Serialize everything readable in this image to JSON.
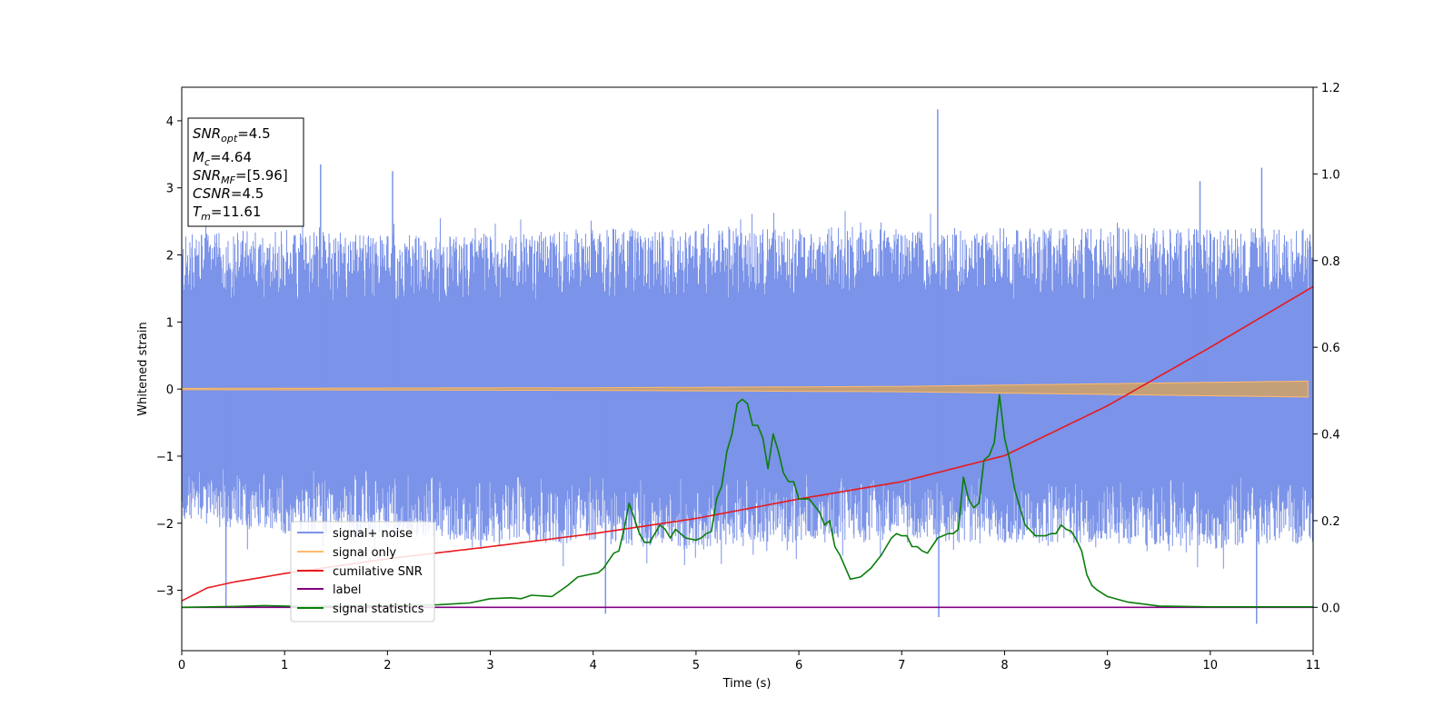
{
  "chart_data": {
    "type": "line",
    "title": "",
    "xlabel": "Time (s)",
    "ylabel": "Whitened strain",
    "xlim": [
      0,
      11
    ],
    "ylim": [
      -3.9,
      4.5
    ],
    "y2lim": [
      -0.1,
      1.2
    ],
    "grid": false,
    "legend_position": "lower-left",
    "x_ticks": [
      "0",
      "1",
      "2",
      "3",
      "4",
      "5",
      "6",
      "7",
      "8",
      "9",
      "10",
      "11"
    ],
    "y_ticks": [
      "−3",
      "−2",
      "−1",
      "0",
      "1",
      "2",
      "3",
      "4"
    ],
    "y2_ticks": [
      "0.0",
      "0.2",
      "0.4",
      "0.6",
      "0.8",
      "1.0",
      "1.2"
    ],
    "annotation_lines": [
      {
        "name": "SNR",
        "sub": "opt",
        "value": "=4.5"
      },
      {
        "name": "M",
        "sub": "c",
        "value": "=4.64"
      },
      {
        "name": "SNR",
        "sub": "MF",
        "value": "=[5.96]"
      },
      {
        "name": "CSNR",
        "sub": "",
        "value": "=4.5"
      },
      {
        "name": "T",
        "sub": "m",
        "value": "=11.61"
      }
    ],
    "series": [
      {
        "name": "signal+ noise",
        "axis": "left",
        "color": "#7b93e8",
        "style": "dense noise band, typical range about ±2.4 with spikes to 4.17 near t=7.35 and down to -3.5 near t=10.45",
        "envelope_upper": [
          [
            0,
            2.3
          ],
          [
            1,
            2.4
          ],
          [
            2,
            2.3
          ],
          [
            3,
            2.3
          ],
          [
            4,
            2.4
          ],
          [
            5,
            2.4
          ],
          [
            6,
            2.4
          ],
          [
            7,
            2.4
          ],
          [
            8,
            2.4
          ],
          [
            9,
            2.4
          ],
          [
            10,
            2.4
          ],
          [
            11,
            2.4
          ]
        ],
        "envelope_lower": [
          [
            0,
            -2.0
          ],
          [
            1,
            -2.2
          ],
          [
            2,
            -2.2
          ],
          [
            3,
            -2.3
          ],
          [
            4,
            -2.3
          ],
          [
            5,
            -2.4
          ],
          [
            6,
            -2.3
          ],
          [
            7,
            -2.3
          ],
          [
            8,
            -2.3
          ],
          [
            9,
            -2.3
          ],
          [
            10,
            -2.4
          ],
          [
            11,
            -2.3
          ]
        ],
        "spikes": [
          [
            0.43,
            -3.25
          ],
          [
            1.35,
            3.35
          ],
          [
            2.05,
            3.25
          ],
          [
            4.12,
            -3.35
          ],
          [
            7.35,
            4.17
          ],
          [
            7.36,
            -3.4
          ],
          [
            9.9,
            3.1
          ],
          [
            10.45,
            -3.5
          ],
          [
            10.5,
            3.3
          ]
        ]
      },
      {
        "name": "signal only",
        "axis": "left",
        "color": "#ffbb6b",
        "style": "chirp oscillation with amplitude growing over time",
        "amplitude": [
          [
            0,
            0.01
          ],
          [
            4,
            0.02
          ],
          [
            7,
            0.04
          ],
          [
            9,
            0.08
          ],
          [
            11,
            0.12
          ]
        ]
      },
      {
        "name": "cumilative SNR",
        "axis": "right",
        "color": "#e8191e",
        "x": [
          0,
          0.25,
          0.5,
          1,
          1.5,
          2,
          3,
          4,
          5,
          6,
          7,
          8,
          9,
          10,
          10.5,
          11
        ],
        "y": [
          0.015,
          0.045,
          0.058,
          0.078,
          0.095,
          0.112,
          0.14,
          0.17,
          0.205,
          0.25,
          0.29,
          0.35,
          0.465,
          0.6,
          0.67,
          0.74
        ]
      },
      {
        "name": "label",
        "axis": "right",
        "color": "#800080",
        "x": [
          0,
          11
        ],
        "y": [
          0,
          0
        ]
      },
      {
        "name": "signal statistics",
        "axis": "right",
        "color": "#0a7d0a",
        "x": [
          0,
          0.5,
          0.8,
          1.2,
          2,
          2.5,
          2.8,
          3.0,
          3.2,
          3.3,
          3.4,
          3.6,
          3.75,
          3.85,
          3.95,
          4.05,
          4.1,
          4.2,
          4.25,
          4.3,
          4.35,
          4.45,
          4.5,
          4.55,
          4.6,
          4.65,
          4.7,
          4.75,
          4.8,
          4.9,
          5.0,
          5.05,
          5.1,
          5.15,
          5.2,
          5.25,
          5.3,
          5.35,
          5.4,
          5.45,
          5.5,
          5.55,
          5.6,
          5.65,
          5.7,
          5.75,
          5.8,
          5.85,
          5.9,
          5.95,
          6.0,
          6.1,
          6.2,
          6.25,
          6.3,
          6.35,
          6.4,
          6.5,
          6.6,
          6.7,
          6.8,
          6.9,
          6.95,
          7.0,
          7.05,
          7.1,
          7.15,
          7.2,
          7.25,
          7.35,
          7.45,
          7.5,
          7.55,
          7.6,
          7.65,
          7.7,
          7.75,
          7.8,
          7.85,
          7.9,
          7.95,
          8.0,
          8.05,
          8.1,
          8.15,
          8.2,
          8.3,
          8.4,
          8.45,
          8.5,
          8.55,
          8.6,
          8.65,
          8.7,
          8.75,
          8.8,
          8.85,
          8.9,
          9.0,
          9.2,
          9.5,
          10,
          11
        ],
        "y": [
          0.0,
          0.002,
          0.004,
          0.002,
          0.004,
          0.006,
          0.01,
          0.02,
          0.022,
          0.02,
          0.028,
          0.025,
          0.05,
          0.07,
          0.075,
          0.08,
          0.09,
          0.125,
          0.13,
          0.18,
          0.24,
          0.17,
          0.15,
          0.15,
          0.17,
          0.19,
          0.18,
          0.16,
          0.18,
          0.16,
          0.155,
          0.16,
          0.17,
          0.175,
          0.25,
          0.28,
          0.36,
          0.4,
          0.47,
          0.48,
          0.47,
          0.42,
          0.42,
          0.39,
          0.32,
          0.4,
          0.36,
          0.31,
          0.29,
          0.29,
          0.25,
          0.25,
          0.22,
          0.19,
          0.2,
          0.14,
          0.12,
          0.065,
          0.07,
          0.09,
          0.12,
          0.16,
          0.17,
          0.165,
          0.165,
          0.14,
          0.14,
          0.13,
          0.125,
          0.16,
          0.17,
          0.17,
          0.18,
          0.3,
          0.25,
          0.23,
          0.24,
          0.34,
          0.35,
          0.38,
          0.49,
          0.39,
          0.34,
          0.27,
          0.23,
          0.19,
          0.165,
          0.165,
          0.17,
          0.17,
          0.19,
          0.18,
          0.175,
          0.155,
          0.13,
          0.075,
          0.05,
          0.04,
          0.025,
          0.012,
          0.003,
          0.001,
          0.001
        ]
      }
    ]
  },
  "colors": {
    "noise": "#7b93e8",
    "signal": "#ffbb6b",
    "overlap": "#c4a078",
    "cumsnr": "#e8191e",
    "label": "#800080",
    "stats": "#0a7d0a"
  }
}
